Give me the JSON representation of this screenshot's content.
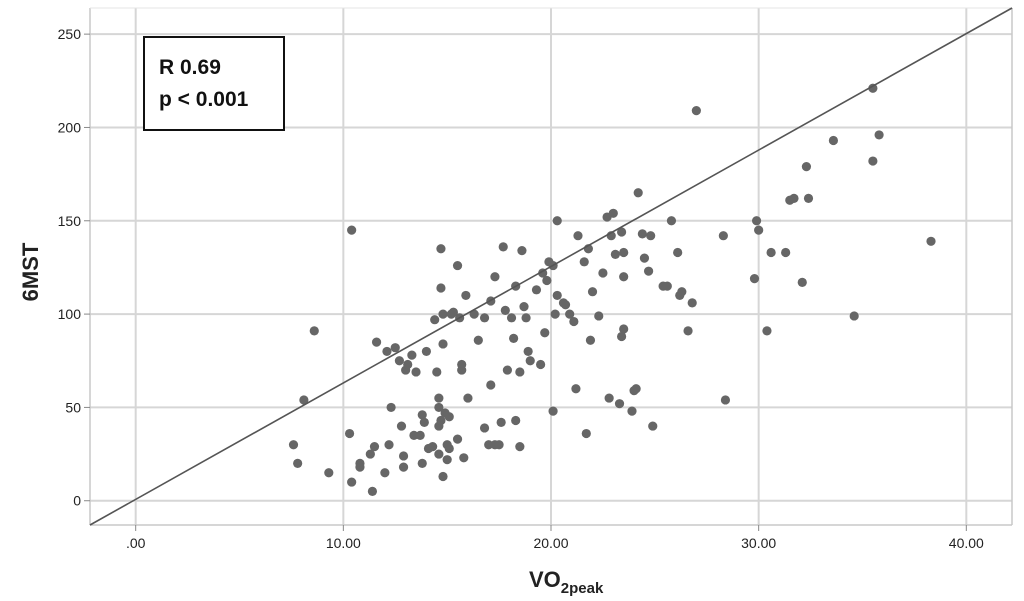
{
  "chart_data": {
    "type": "scatter",
    "xlabel": "VO",
    "xlabel_subscript": "2peak",
    "ylabel": "6MST",
    "xlim": [
      -2.2,
      42.2
    ],
    "ylim": [
      -13,
      264
    ],
    "x_ticks": [
      0,
      10,
      20,
      30,
      40
    ],
    "x_tick_labels": [
      ".00",
      "10.00",
      "20.00",
      "30.00",
      "40.00"
    ],
    "y_ticks": [
      0,
      50,
      100,
      150,
      200,
      250
    ],
    "y_tick_labels": [
      "0",
      "50",
      "100",
      "150",
      "200",
      "250"
    ],
    "grid": true,
    "annotation": {
      "r_text": "R 0.69",
      "p_text": "p < 0.001"
    },
    "reference_line": {
      "x1": -2.2,
      "y1": -13,
      "x2": 42.2,
      "y2": 264
    },
    "point_color": "#666666",
    "line_color": "#555555",
    "grid_color": "#d6d6d6",
    "points": [
      [
        7.6,
        30
      ],
      [
        7.8,
        20
      ],
      [
        8.1,
        54
      ],
      [
        8.6,
        91
      ],
      [
        9.3,
        15
      ],
      [
        10.3,
        36
      ],
      [
        10.4,
        145
      ],
      [
        10.4,
        10
      ],
      [
        10.8,
        20
      ],
      [
        10.8,
        18
      ],
      [
        11.3,
        25
      ],
      [
        11.4,
        5
      ],
      [
        11.5,
        29
      ],
      [
        11.6,
        85
      ],
      [
        12.0,
        15
      ],
      [
        12.1,
        80
      ],
      [
        12.2,
        30
      ],
      [
        12.3,
        50
      ],
      [
        12.5,
        82
      ],
      [
        12.7,
        75
      ],
      [
        12.8,
        40
      ],
      [
        12.9,
        18
      ],
      [
        12.9,
        24
      ],
      [
        13.0,
        70
      ],
      [
        13.1,
        73
      ],
      [
        13.3,
        78
      ],
      [
        13.4,
        35
      ],
      [
        13.5,
        69
      ],
      [
        13.7,
        35
      ],
      [
        13.8,
        46
      ],
      [
        13.8,
        20
      ],
      [
        13.9,
        42
      ],
      [
        14.0,
        80
      ],
      [
        14.1,
        28
      ],
      [
        14.3,
        29
      ],
      [
        14.4,
        97
      ],
      [
        14.5,
        69
      ],
      [
        14.6,
        25
      ],
      [
        14.6,
        40
      ],
      [
        14.6,
        50
      ],
      [
        14.6,
        55
      ],
      [
        14.7,
        43
      ],
      [
        14.7,
        135
      ],
      [
        14.7,
        114
      ],
      [
        14.8,
        13
      ],
      [
        14.8,
        100
      ],
      [
        14.8,
        84
      ],
      [
        14.9,
        47
      ],
      [
        15.0,
        30
      ],
      [
        15.0,
        22
      ],
      [
        15.1,
        28
      ],
      [
        15.1,
        45
      ],
      [
        15.2,
        100
      ],
      [
        15.3,
        101
      ],
      [
        15.5,
        126
      ],
      [
        15.5,
        33
      ],
      [
        15.6,
        98
      ],
      [
        15.7,
        73
      ],
      [
        15.7,
        70
      ],
      [
        15.8,
        23
      ],
      [
        15.9,
        110
      ],
      [
        16.0,
        55
      ],
      [
        16.3,
        100
      ],
      [
        16.5,
        86
      ],
      [
        16.8,
        39
      ],
      [
        16.8,
        98
      ],
      [
        17.0,
        30
      ],
      [
        17.1,
        107
      ],
      [
        17.1,
        62
      ],
      [
        17.3,
        30
      ],
      [
        17.3,
        120
      ],
      [
        17.5,
        30
      ],
      [
        17.6,
        42
      ],
      [
        17.7,
        136
      ],
      [
        17.8,
        102
      ],
      [
        17.9,
        70
      ],
      [
        18.1,
        98
      ],
      [
        18.2,
        87
      ],
      [
        18.3,
        115
      ],
      [
        18.3,
        43
      ],
      [
        18.5,
        69
      ],
      [
        18.5,
        29
      ],
      [
        18.6,
        134
      ],
      [
        18.7,
        104
      ],
      [
        18.8,
        98
      ],
      [
        18.9,
        80
      ],
      [
        19.0,
        75
      ],
      [
        19.3,
        113
      ],
      [
        19.5,
        73
      ],
      [
        19.6,
        122
      ],
      [
        19.7,
        90
      ],
      [
        19.8,
        118
      ],
      [
        19.9,
        128
      ],
      [
        20.1,
        48
      ],
      [
        20.1,
        126
      ],
      [
        20.2,
        100
      ],
      [
        20.3,
        110
      ],
      [
        20.3,
        150
      ],
      [
        20.6,
        106
      ],
      [
        20.7,
        105
      ],
      [
        20.9,
        100
      ],
      [
        21.1,
        96
      ],
      [
        21.2,
        60
      ],
      [
        21.3,
        142
      ],
      [
        21.6,
        128
      ],
      [
        21.7,
        36
      ],
      [
        21.8,
        135
      ],
      [
        21.9,
        86
      ],
      [
        22.0,
        112
      ],
      [
        22.3,
        99
      ],
      [
        22.5,
        122
      ],
      [
        22.7,
        152
      ],
      [
        22.8,
        55
      ],
      [
        22.9,
        142
      ],
      [
        23.0,
        154
      ],
      [
        23.1,
        132
      ],
      [
        23.3,
        52
      ],
      [
        23.4,
        88
      ],
      [
        23.4,
        144
      ],
      [
        23.5,
        92
      ],
      [
        23.5,
        120
      ],
      [
        23.5,
        133
      ],
      [
        23.9,
        48
      ],
      [
        24.0,
        59
      ],
      [
        24.1,
        60
      ],
      [
        24.2,
        165
      ],
      [
        24.4,
        143
      ],
      [
        24.5,
        130
      ],
      [
        24.7,
        123
      ],
      [
        24.8,
        142
      ],
      [
        24.9,
        40
      ],
      [
        25.4,
        115
      ],
      [
        25.6,
        115
      ],
      [
        25.8,
        150
      ],
      [
        26.1,
        133
      ],
      [
        26.2,
        110
      ],
      [
        26.3,
        112
      ],
      [
        26.6,
        91
      ],
      [
        26.8,
        106
      ],
      [
        27.0,
        209
      ],
      [
        28.3,
        142
      ],
      [
        28.4,
        54
      ],
      [
        29.8,
        119
      ],
      [
        29.9,
        150
      ],
      [
        30.0,
        145
      ],
      [
        30.4,
        91
      ],
      [
        30.6,
        133
      ],
      [
        31.3,
        133
      ],
      [
        31.5,
        161
      ],
      [
        31.7,
        162
      ],
      [
        32.1,
        117
      ],
      [
        32.3,
        179
      ],
      [
        32.4,
        162
      ],
      [
        33.6,
        193
      ],
      [
        34.6,
        99
      ],
      [
        35.5,
        221
      ],
      [
        35.5,
        182
      ],
      [
        35.8,
        196
      ],
      [
        38.3,
        139
      ]
    ]
  }
}
